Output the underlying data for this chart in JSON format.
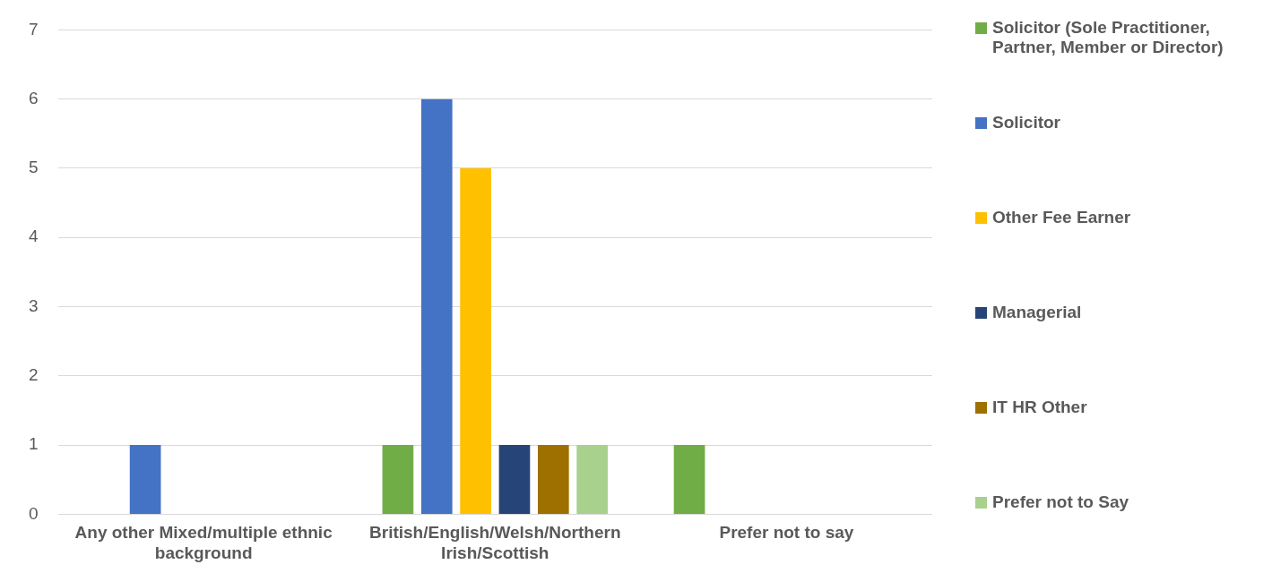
{
  "chart_data": {
    "type": "bar",
    "categories": [
      "Any other Mixed/multiple ethnic background",
      "British/English/Welsh/Northern Irish/Scottish",
      "Prefer not to say"
    ],
    "series": [
      {
        "name": "Solicitor (Sole Practitioner, Partner, Member or Director)",
        "color": "#70ad47",
        "values": [
          0,
          1,
          1
        ]
      },
      {
        "name": "Solicitor",
        "color": "#4472c4",
        "values": [
          1,
          6,
          0
        ]
      },
      {
        "name": "Other Fee Earner",
        "color": "#ffc000",
        "values": [
          0,
          5,
          0
        ]
      },
      {
        "name": "Managerial",
        "color": "#264478",
        "values": [
          0,
          1,
          0
        ]
      },
      {
        "name": "IT HR Other",
        "color": "#9e7000",
        "values": [
          0,
          1,
          0
        ]
      },
      {
        "name": "Prefer not to Say",
        "color": "#a9d18e",
        "values": [
          0,
          1,
          0
        ]
      }
    ],
    "ylim": [
      0,
      7
    ],
    "yticks": [
      0,
      1,
      2,
      3,
      4,
      5,
      6,
      7
    ],
    "grid": "y",
    "legend": "right"
  }
}
